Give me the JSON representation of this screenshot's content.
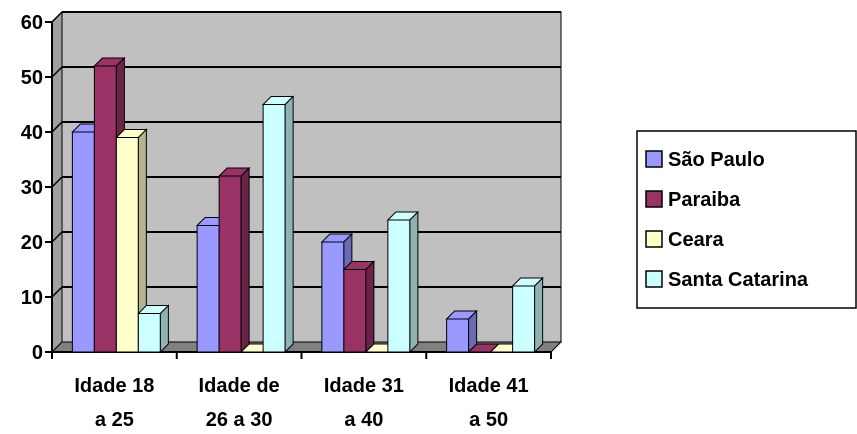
{
  "chart_data": {
    "type": "bar",
    "style": "3d-clustered-column",
    "categories": [
      [
        "Idade 18",
        "a 25"
      ],
      [
        "Idade de",
        "26 a 30"
      ],
      [
        "Idade 31",
        "a 40"
      ],
      [
        "Idade 41",
        "a 50"
      ]
    ],
    "series": [
      {
        "name": "São Paulo",
        "color": "#9999FF",
        "values": [
          40,
          23,
          20,
          6
        ]
      },
      {
        "name": "Paraiba",
        "color": "#993366",
        "values": [
          52,
          32,
          15,
          0
        ]
      },
      {
        "name": "Ceara",
        "color": "#FFFFCC",
        "values": [
          39,
          0,
          0,
          0
        ]
      },
      {
        "name": "Santa Catarina",
        "color": "#CCFFFF",
        "values": [
          7,
          45,
          24,
          12
        ]
      }
    ],
    "ylim": [
      0,
      60
    ],
    "yticks": [
      0,
      10,
      20,
      30,
      40,
      50,
      60
    ],
    "grid": true,
    "wall_color": "#C0C0C0",
    "legend_position": "right"
  }
}
